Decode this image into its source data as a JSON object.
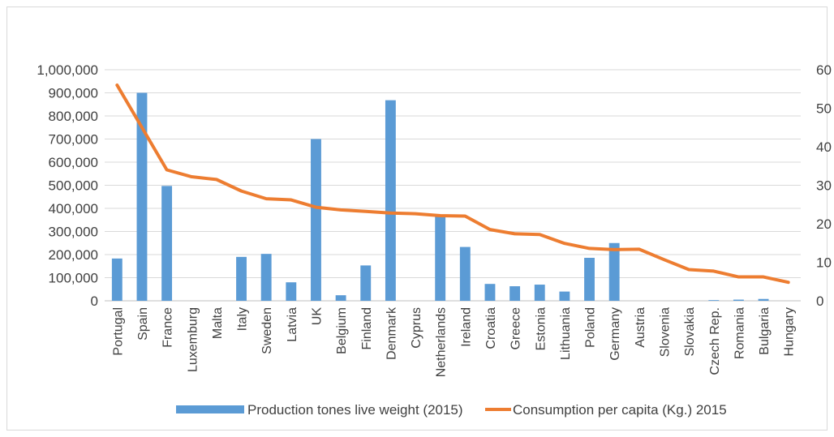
{
  "chart_data": {
    "type": "bar",
    "categories": [
      "Portugal",
      "Spain",
      "France",
      "Luxemburg",
      "Malta",
      "Italy",
      "Sweden",
      "Latvia",
      "UK",
      "Belgium",
      "Finland",
      "Denmark",
      "Cyprus",
      "Netherlands",
      "Ireland",
      "Croatia",
      "Greece",
      "Estonia",
      "Lithuania",
      "Poland",
      "Germany",
      "Austria",
      "Slovenia",
      "Slovakia",
      "Czech Rep.",
      "Romania",
      "Bulgaria",
      "Hungary"
    ],
    "series": [
      {
        "name": "Production tones live weight (2015)",
        "type": "bar",
        "axis": "left",
        "color": "#5b9bd5",
        "values": [
          183000,
          900000,
          497000,
          0,
          0,
          190000,
          203000,
          80000,
          700000,
          24000,
          153000,
          868000,
          0,
          368000,
          233000,
          73000,
          63000,
          70000,
          40000,
          186000,
          250000,
          0,
          0,
          0,
          3000,
          5000,
          8000,
          0
        ]
      },
      {
        "name": "Consumption per capita (Kg.) 2015",
        "type": "line",
        "axis": "right",
        "color": "#ed7d31",
        "values": [
          56,
          45,
          34,
          32.2,
          31.5,
          28.5,
          26.5,
          26.2,
          24.3,
          23.6,
          23.2,
          22.8,
          22.6,
          22.1,
          22,
          18.5,
          17.4,
          17.2,
          14.9,
          13.6,
          13.3,
          13.4,
          10.7,
          8.1,
          7.7,
          6.2,
          6.2,
          4.8
        ]
      }
    ],
    "y_left": {
      "min": 0,
      "max": 1000000,
      "ticks": [
        "0",
        "100,000",
        "200,000",
        "300,000",
        "400,000",
        "500,000",
        "600,000",
        "700,000",
        "800,000",
        "900,000",
        "1,000,000"
      ]
    },
    "y_right": {
      "min": 0,
      "max": 60,
      "ticks": [
        "0",
        "10",
        "20",
        "30",
        "40",
        "50",
        "60"
      ]
    },
    "grid": true,
    "legend_position": "bottom"
  }
}
